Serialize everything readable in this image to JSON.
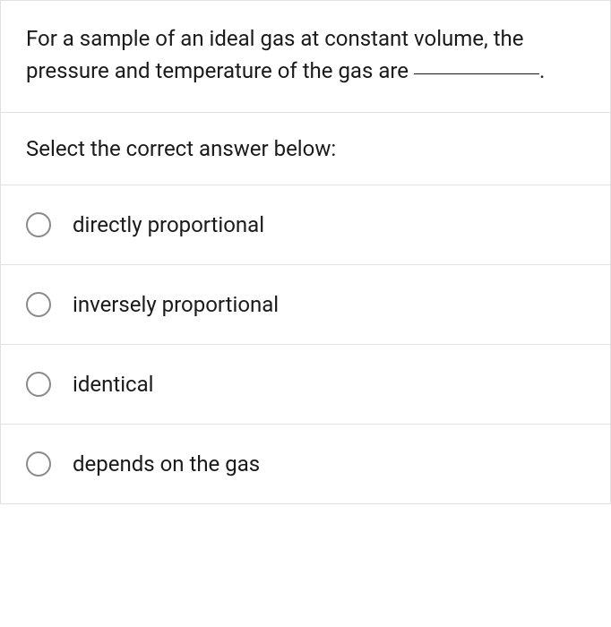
{
  "question": {
    "text_before_blank": "For a sample of an ideal gas at constant volume, the pressure and temperature of the gas are ",
    "text_after_blank": "."
  },
  "instruction": "Select the correct answer below:",
  "options": [
    {
      "label": "directly proportional"
    },
    {
      "label": "inversely proportional"
    },
    {
      "label": "identical"
    },
    {
      "label": "depends on the gas"
    }
  ],
  "styles": {
    "border_color": "#e0e0e0",
    "text_color": "#1a1a1a",
    "radio_border_color": "#8a8a8a",
    "background_color": "#ffffff",
    "font_size": 24
  }
}
